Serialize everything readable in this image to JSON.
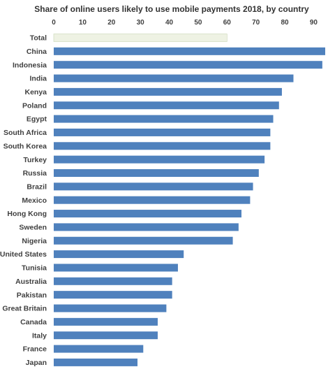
{
  "chart_data": {
    "type": "bar",
    "orientation": "horizontal",
    "title": "Share of online users likely to use mobile payments 2018, by country",
    "xlabel": "",
    "ylabel": "",
    "xlim": [
      0,
      94
    ],
    "ticks": [
      0,
      10,
      20,
      30,
      40,
      50,
      60,
      70,
      80,
      90
    ],
    "tick_labels": [
      "0",
      "10",
      "20",
      "30",
      "40",
      "50",
      "60",
      "70",
      "80",
      "90"
    ],
    "grid": false,
    "legend": "none",
    "categories": [
      "Total",
      "China",
      "Indonesia",
      "India",
      "Kenya",
      "Poland",
      "Egypt",
      "South Africa",
      "South Korea",
      "Turkey",
      "Russia",
      "Brazil",
      "Mexico",
      "Hong Kong",
      "Sweden",
      "Nigeria",
      "United States",
      "Tunisia",
      "Australia",
      "Pakistan",
      "Great Britain",
      "Canada",
      "Italy",
      "France",
      "Japan"
    ],
    "values": [
      60,
      94,
      93,
      83,
      79,
      78,
      76,
      75,
      75,
      73,
      71,
      69,
      68,
      65,
      64,
      62,
      45,
      43,
      41,
      41,
      39,
      36,
      36,
      31,
      29
    ],
    "colors": {
      "bar": "#4f81bd",
      "highlight": "#eef2e3",
      "highlight_border": "#c9d6b3"
    },
    "highlight_categories": [
      "Total"
    ]
  }
}
